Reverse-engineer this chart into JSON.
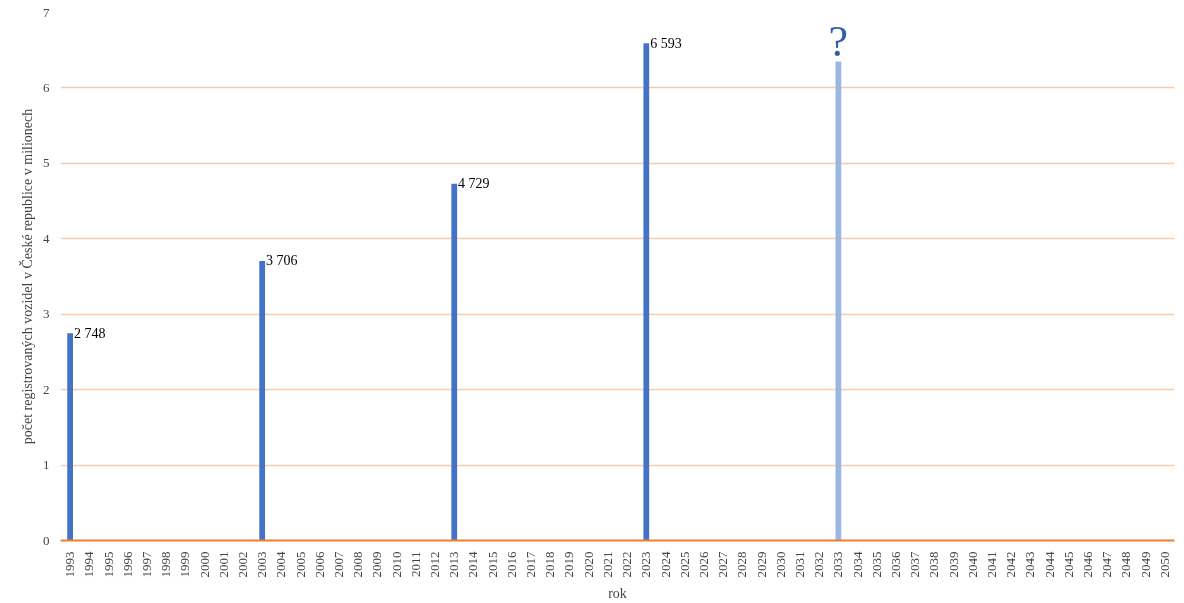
{
  "chart_data": {
    "type": "bar",
    "xlabel": "rok",
    "ylabel": "počet registrovaných vozidel v České republice v milionech",
    "categories": [
      "1993",
      "1994",
      "1995",
      "1996",
      "1997",
      "1998",
      "1999",
      "2000",
      "2001",
      "2002",
      "2003",
      "2004",
      "2005",
      "2006",
      "2007",
      "2008",
      "2009",
      "2010",
      "2011",
      "2012",
      "2013",
      "2014",
      "2015",
      "2016",
      "2017",
      "2018",
      "2019",
      "2020",
      "2021",
      "2022",
      "2023",
      "2024",
      "2025",
      "2026",
      "2027",
      "2028",
      "2029",
      "2030",
      "2031",
      "2032",
      "2033",
      "2034",
      "2035",
      "2036",
      "2037",
      "2038",
      "2039",
      "2040",
      "2041",
      "2042",
      "2043",
      "2044",
      "2045",
      "2046",
      "2047",
      "2048",
      "2049",
      "2050"
    ],
    "values": [
      2.748,
      null,
      null,
      null,
      null,
      null,
      null,
      null,
      null,
      null,
      3.706,
      null,
      null,
      null,
      null,
      null,
      null,
      null,
      null,
      null,
      4.729,
      null,
      null,
      null,
      null,
      null,
      null,
      null,
      null,
      null,
      6.593,
      null,
      null,
      null,
      null,
      null,
      null,
      null,
      null,
      null,
      6.35,
      null,
      null,
      null,
      null,
      null,
      null,
      null,
      null,
      null,
      null,
      null,
      null,
      null,
      null,
      null,
      null,
      null
    ],
    "colors": [
      "#4472c4",
      "#4472c4",
      "#4472c4",
      "#4472c4",
      "#4472c4",
      "#4472c4",
      "#4472c4",
      "#4472c4",
      "#4472c4",
      "#4472c4",
      "#4472c4",
      "#4472c4",
      "#4472c4",
      "#4472c4",
      "#4472c4",
      "#4472c4",
      "#4472c4",
      "#4472c4",
      "#4472c4",
      "#4472c4",
      "#4472c4",
      "#4472c4",
      "#4472c4",
      "#4472c4",
      "#4472c4",
      "#4472c4",
      "#4472c4",
      "#4472c4",
      "#4472c4",
      "#4472c4",
      "#4472c4",
      "#4472c4",
      "#4472c4",
      "#4472c4",
      "#4472c4",
      "#4472c4",
      "#4472c4",
      "#4472c4",
      "#4472c4",
      "#4472c4",
      "#9db6e0",
      "#4472c4",
      "#4472c4",
      "#4472c4",
      "#4472c4",
      "#4472c4",
      "#4472c4",
      "#4472c4",
      "#4472c4",
      "#4472c4",
      "#4472c4",
      "#4472c4",
      "#4472c4",
      "#4472c4",
      "#4472c4",
      "#4472c4",
      "#4472c4",
      "#4472c4"
    ],
    "annotations": [
      {
        "text": "2 748",
        "x": "1993",
        "y": 2.748
      },
      {
        "text": "3 706",
        "x": "2003",
        "y": 3.706
      },
      {
        "text": "4 729",
        "x": "2013",
        "y": 4.729
      },
      {
        "text": "6 593",
        "x": "2023",
        "y": 6.593
      },
      {
        "text": "?",
        "x": "2033",
        "y": 6.35
      }
    ],
    "ylim": [
      0,
      7
    ],
    "yticks": [
      0,
      1,
      2,
      3,
      4,
      5,
      6,
      7
    ],
    "grid": "y"
  }
}
